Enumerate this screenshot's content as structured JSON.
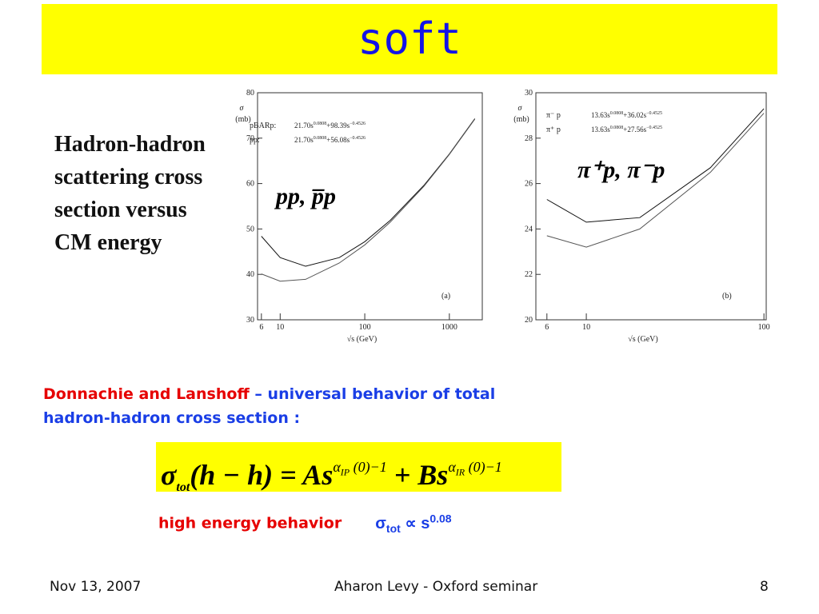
{
  "title": "soft",
  "side_text": [
    "Hadron-hadron",
    "scattering cross",
    "section versus",
    "CM energy"
  ],
  "description": {
    "authors": "Donnachie and Lanshoff",
    "rest": " – universal behavior of total",
    "line2": "hadron-hadron cross section :"
  },
  "formula": {
    "sigma": "σ",
    "sub": "tot",
    "lhs": "(h − h) = As",
    "alpha1": "α",
    "sub1": "IP",
    "exp1": "(0)−1",
    "mid": " + Bs",
    "alpha2": "α",
    "sub2": "IR",
    "exp2": "(0)−1"
  },
  "behavior": {
    "label": "high energy behavior",
    "sigma": "σ",
    "sub": "tot",
    "prop": " ∝ s",
    "exp": "0.08"
  },
  "footer": {
    "date": "Nov 13, 2007",
    "center": "Aharon Levy - Oxford seminar",
    "page": "8"
  },
  "chart_data": [
    {
      "type": "line",
      "annotation": "pp,  p̅p",
      "panel": "(a)",
      "ylabel": [
        "σ",
        "(mb)"
      ],
      "xlabel": "√s (GeV)",
      "xscale": "log",
      "xlim": [
        5.4,
        2450
      ],
      "xticks": [
        6,
        10,
        100,
        1000
      ],
      "ylim": [
        30,
        80
      ],
      "yticks": [
        30,
        40,
        50,
        60,
        70,
        80
      ],
      "x": [
        6,
        10,
        20,
        50,
        100,
        200,
        500,
        1000,
        2000
      ],
      "series": [
        {
          "name": "pBARp:",
          "fit": {
            "a": "21.70s",
            "e1": "0.0808",
            "b": "+98.39s",
            "e2": "−0.4526"
          },
          "color": "#111111",
          "values": [
            48.4,
            43.7,
            41.8,
            43.7,
            47.2,
            51.9,
            59.6,
            66.5,
            74.3
          ]
        },
        {
          "name": "pp:",
          "fit": {
            "a": "21.70s",
            "e1": "0.0808",
            "b": "+56.08s",
            "e2": "−0.4526"
          },
          "color": "#555555",
          "values": [
            40.1,
            38.5,
            38.9,
            42.5,
            46.5,
            51.5,
            59.4,
            66.4,
            74.2
          ]
        }
      ]
    },
    {
      "type": "line",
      "annotation": "π⁺p,  π⁻p",
      "panel": "(b)",
      "ylabel": [
        "σ",
        "(mb)"
      ],
      "xlabel": "√s (GeV)",
      "xscale": "log",
      "xlim": [
        5.2,
        103
      ],
      "xticks": [
        6,
        10,
        100
      ],
      "ylim": [
        20,
        30
      ],
      "yticks": [
        20,
        22,
        24,
        26,
        28,
        30
      ],
      "x": [
        6,
        10,
        20,
        50,
        100
      ],
      "series": [
        {
          "name": "π⁻ p",
          "fit": {
            "a": "13.63s",
            "e1": "0.0808",
            "b": "+36.02s",
            "e2": "−0.4525"
          },
          "color": "#111111",
          "values": [
            25.3,
            24.3,
            24.5,
            26.7,
            29.3
          ]
        },
        {
          "name": "π⁺ p",
          "fit": {
            "a": "13.63s",
            "e1": "0.0808",
            "b": "+27.56s",
            "e2": "−0.4525"
          },
          "color": "#555555",
          "values": [
            23.7,
            23.2,
            24.0,
            26.5,
            29.1
          ]
        }
      ]
    }
  ]
}
